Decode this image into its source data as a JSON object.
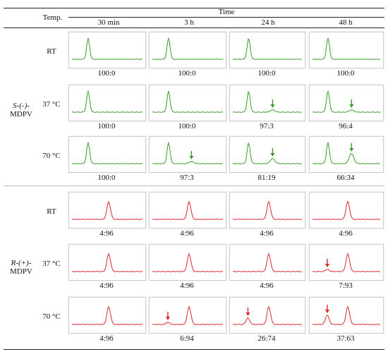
{
  "header": {
    "temp_label": "Temp.",
    "time_label": "Time",
    "times": [
      "30 min",
      "3 h",
      "24 h",
      "48 h"
    ]
  },
  "colors": {
    "s_trace": "#3a9a2a",
    "r_trace": "#e0262a",
    "rule": "#222222"
  },
  "groups": [
    {
      "name_line1": "S-(-)-",
      "name_line2": "MDPV",
      "color": "green",
      "rows": [
        {
          "temp": "RT",
          "ratios": [
            "100:0",
            "100:0",
            "100:0",
            "100:0"
          ],
          "arrows": [
            false,
            false,
            false,
            false
          ]
        },
        {
          "temp": "37 °C",
          "ratios": [
            "100:0",
            "100:0",
            "97:3",
            "96:4"
          ],
          "arrows": [
            false,
            false,
            true,
            true
          ]
        },
        {
          "temp": "70 °C",
          "ratios": [
            "100:0",
            "97:3",
            "81:19",
            "66:34"
          ],
          "arrows": [
            false,
            true,
            true,
            true
          ]
        }
      ]
    },
    {
      "name_line1": "R-(+)-",
      "name_line2": "MDPV",
      "color": "red",
      "rows": [
        {
          "temp": "RT",
          "ratios": [
            "4:96",
            "4:96",
            "4:96",
            "4:96"
          ],
          "arrows": [
            false,
            false,
            false,
            false
          ]
        },
        {
          "temp": "37 °C",
          "ratios": [
            "4:96",
            "4:96",
            "4:96",
            "7:93"
          ],
          "arrows": [
            false,
            false,
            false,
            true
          ]
        },
        {
          "temp": "70 °C",
          "ratios": [
            "4:96",
            "6:94",
            "26:74",
            "37:63"
          ],
          "arrows": [
            false,
            true,
            true,
            true
          ]
        }
      ]
    }
  ]
}
